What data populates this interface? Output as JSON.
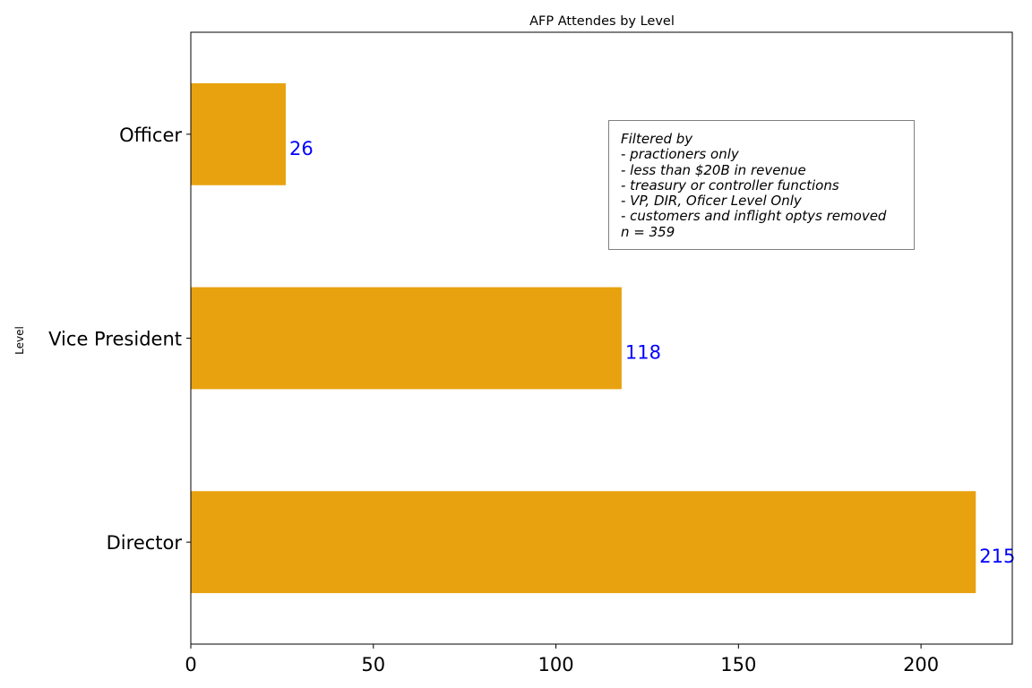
{
  "chart_data": {
    "type": "bar",
    "orientation": "horizontal",
    "title": "AFP Attendes by Level",
    "xlabel": "",
    "ylabel": "Level",
    "categories": [
      "Director",
      "Vice President",
      "Officer"
    ],
    "values": [
      215,
      118,
      26
    ],
    "data_labels": [
      "215",
      "118",
      "26"
    ],
    "xlim": [
      0,
      225
    ],
    "xticks": [
      0,
      50,
      100,
      150,
      200
    ],
    "xtick_labels": [
      "0",
      "50",
      "100",
      "150",
      "200"
    ],
    "grid": false,
    "bar_color": "#E8A20F",
    "label_color": "#0000FF",
    "annotation": {
      "lines": [
        "Filtered by",
        "- practioners only",
        "- less than $20B in revenue",
        "- treasury or controller functions",
        "- VP, DIR, Oficer Level Only",
        "- customers and inflight optys removed",
        "n = 359"
      ]
    }
  }
}
